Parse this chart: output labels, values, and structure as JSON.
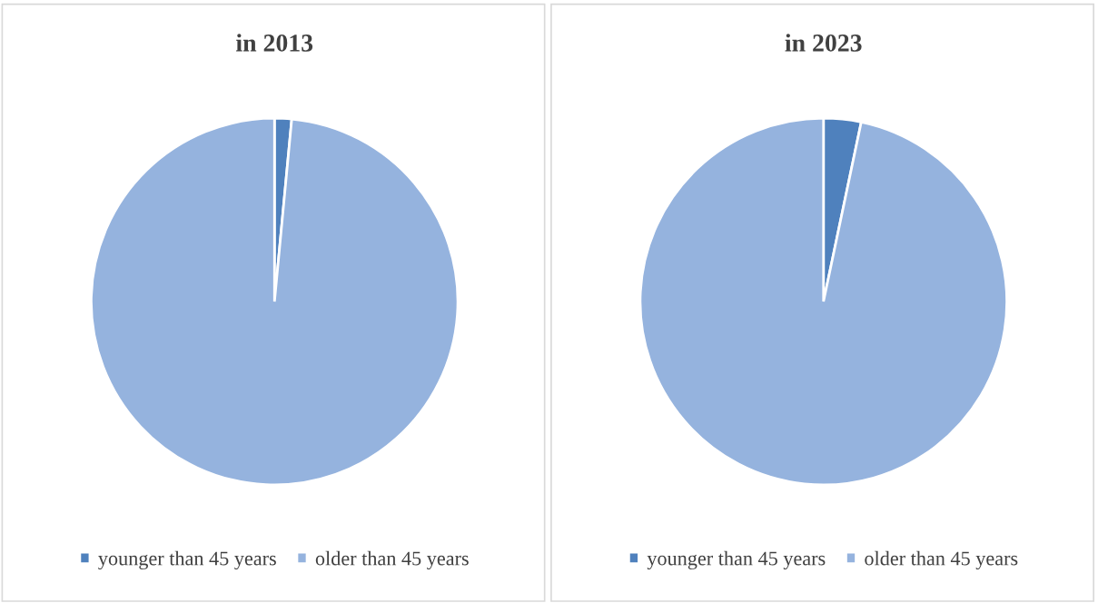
{
  "chart_data": [
    {
      "type": "pie",
      "title": "in 2013",
      "categories": [
        "younger than 45 years",
        "older than 45 years"
      ],
      "values": [
        1.5,
        98.5
      ],
      "colors": [
        "#4f81bd",
        "#95b3de"
      ],
      "legend": "bottom"
    },
    {
      "type": "pie",
      "title": "in 2023",
      "categories": [
        "younger than 45 years",
        "older than 45 years"
      ],
      "values": [
        3.3,
        96.7
      ],
      "colors": [
        "#4f81bd",
        "#95b3de"
      ],
      "legend": "bottom"
    }
  ]
}
